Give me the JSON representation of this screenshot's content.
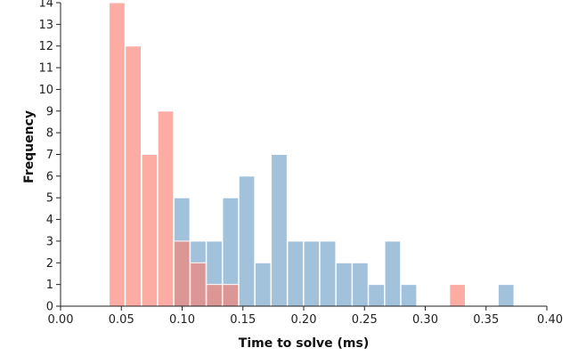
{
  "chart_data": {
    "type": "bar",
    "title": "",
    "xlabel": "Time to solve (ms)",
    "ylabel": "Frequency",
    "xlim": [
      0,
      0.4
    ],
    "ylim": [
      0,
      14
    ],
    "x_ticks": [
      "0.00",
      "0.05",
      "0.10",
      "0.15",
      "0.20",
      "0.25",
      "0.30",
      "0.35",
      "0.40"
    ],
    "y_ticks": [
      "0",
      "1",
      "2",
      "3",
      "4",
      "5",
      "6",
      "7",
      "8",
      "9",
      "10",
      "11",
      "12",
      "13",
      "14"
    ],
    "grid": false,
    "legend": "none",
    "bin_width": 0.01333,
    "series": [
      {
        "color": "#92b6d5",
        "opacity": 0.85,
        "bins": [
          {
            "x0": 0.0933,
            "x1": 0.1067,
            "count": 5
          },
          {
            "x0": 0.1067,
            "x1": 0.12,
            "count": 3
          },
          {
            "x0": 0.12,
            "x1": 0.1333,
            "count": 3
          },
          {
            "x0": 0.1333,
            "x1": 0.1467,
            "count": 5
          },
          {
            "x0": 0.1467,
            "x1": 0.16,
            "count": 6
          },
          {
            "x0": 0.16,
            "x1": 0.1733,
            "count": 2
          },
          {
            "x0": 0.1733,
            "x1": 0.1867,
            "count": 7
          },
          {
            "x0": 0.1867,
            "x1": 0.2,
            "count": 3
          },
          {
            "x0": 0.2,
            "x1": 0.2133,
            "count": 3
          },
          {
            "x0": 0.2133,
            "x1": 0.2267,
            "count": 3
          },
          {
            "x0": 0.2267,
            "x1": 0.24,
            "count": 2
          },
          {
            "x0": 0.24,
            "x1": 0.2533,
            "count": 2
          },
          {
            "x0": 0.2533,
            "x1": 0.2667,
            "count": 1
          },
          {
            "x0": 0.2667,
            "x1": 0.28,
            "count": 3
          },
          {
            "x0": 0.28,
            "x1": 0.2933,
            "count": 1
          },
          {
            "x0": 0.36,
            "x1": 0.3733,
            "count": 1
          }
        ]
      },
      {
        "color": "#fa8072",
        "opacity": 0.65,
        "bins": [
          {
            "x0": 0.04,
            "x1": 0.0533,
            "count": 14
          },
          {
            "x0": 0.0533,
            "x1": 0.0667,
            "count": 12
          },
          {
            "x0": 0.0667,
            "x1": 0.08,
            "count": 7
          },
          {
            "x0": 0.08,
            "x1": 0.0933,
            "count": 9
          },
          {
            "x0": 0.0933,
            "x1": 0.1067,
            "count": 3
          },
          {
            "x0": 0.1067,
            "x1": 0.12,
            "count": 2
          },
          {
            "x0": 0.12,
            "x1": 0.1333,
            "count": 1
          },
          {
            "x0": 0.1333,
            "x1": 0.1467,
            "count": 1
          },
          {
            "x0": 0.32,
            "x1": 0.3333,
            "count": 1
          }
        ]
      }
    ]
  }
}
